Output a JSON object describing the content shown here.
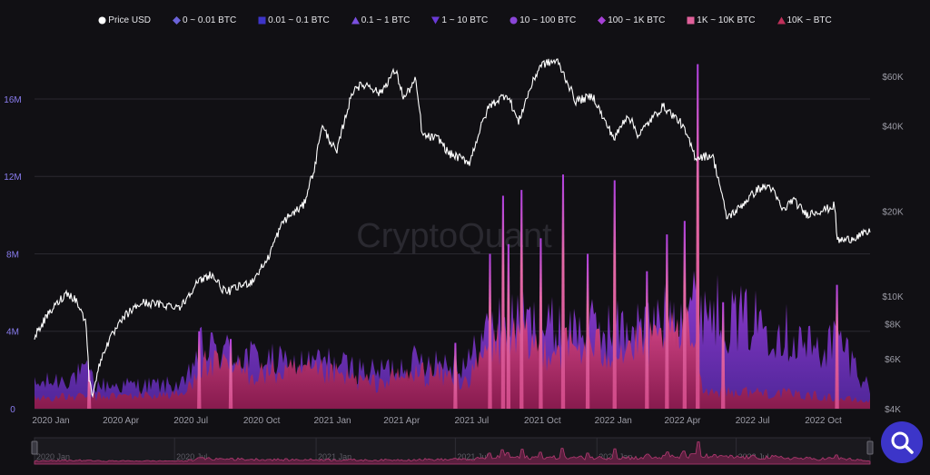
{
  "legend": [
    {
      "label": "Price USD",
      "shape": "circle",
      "color": "#ffffff"
    },
    {
      "label": "0 ~ 0.01 BTC",
      "shape": "diamond",
      "color": "#6b63d9"
    },
    {
      "label": "0.01 ~ 0.1 BTC",
      "shape": "square",
      "color": "#3d34c8"
    },
    {
      "label": "0.1 ~ 1 BTC",
      "shape": "triangle",
      "color": "#7a4fe0"
    },
    {
      "label": "1 ~ 10 BTC",
      "shape": "triangle-down",
      "color": "#6a3ad6"
    },
    {
      "label": "10 ~ 100 BTC",
      "shape": "circle",
      "color": "#8a45d8"
    },
    {
      "label": "100 ~ 1K BTC",
      "shape": "diamond",
      "color": "#a640d6"
    },
    {
      "label": "1K ~ 10K BTC",
      "shape": "square",
      "color": "#e0609a"
    },
    {
      "label": "10K ~ BTC",
      "shape": "triangle",
      "color": "#c0305a"
    }
  ],
  "watermark": "CryptoQuant",
  "chart_data": {
    "type": "area",
    "x_ticks": [
      "2020 Jan",
      "2020 Apr",
      "2020 Jul",
      "2020 Oct",
      "2021 Jan",
      "2021 Apr",
      "2021 Jul",
      "2021 Oct",
      "2022 Jan",
      "2022 Apr",
      "2022 Jul",
      "2022 Oct"
    ],
    "x_range": [
      "2020 Jan",
      "2022 Dec"
    ],
    "left_axis": {
      "ticks": [
        "0",
        "4M",
        "8M",
        "12M",
        "16M"
      ],
      "range": [
        0,
        19000000
      ]
    },
    "right_axis": {
      "scale": "log",
      "ticks": [
        "$4K",
        "$6K",
        "$8K",
        "$10K",
        "$20K",
        "$40K",
        "$60K"
      ],
      "range": [
        4000,
        80000
      ]
    },
    "grid": true,
    "legend_position": "top-center",
    "price_series": {
      "name": "Price USD",
      "points": [
        [
          "2020-01-01",
          7200
        ],
        [
          "2020-01-20",
          8700
        ],
        [
          "2020-02-12",
          10300
        ],
        [
          "2020-02-24",
          9700
        ],
        [
          "2020-03-08",
          8000
        ],
        [
          "2020-03-12",
          5000
        ],
        [
          "2020-03-16",
          4500
        ],
        [
          "2020-04-01",
          6500
        ],
        [
          "2020-04-29",
          8600
        ],
        [
          "2020-05-20",
          9500
        ],
        [
          "2020-06-20",
          9300
        ],
        [
          "2020-07-10",
          9200
        ],
        [
          "2020-07-28",
          11000
        ],
        [
          "2020-08-17",
          12000
        ],
        [
          "2020-09-05",
          10300
        ],
        [
          "2020-10-10",
          11300
        ],
        [
          "2020-10-30",
          13500
        ],
        [
          "2020-11-20",
          18500
        ],
        [
          "2020-12-16",
          21000
        ],
        [
          "2020-12-31",
          29000
        ],
        [
          "2021-01-08",
          40000
        ],
        [
          "2021-01-28",
          32000
        ],
        [
          "2021-02-20",
          55000
        ],
        [
          "2021-03-10",
          56000
        ],
        [
          "2021-03-25",
          52000
        ],
        [
          "2021-04-14",
          63000
        ],
        [
          "2021-04-25",
          50000
        ],
        [
          "2021-05-10",
          58000
        ],
        [
          "2021-05-19",
          37000
        ],
        [
          "2021-06-10",
          36000
        ],
        [
          "2021-06-22",
          32000
        ],
        [
          "2021-07-20",
          29800
        ],
        [
          "2021-08-14",
          47000
        ],
        [
          "2021-09-06",
          52000
        ],
        [
          "2021-09-21",
          41000
        ],
        [
          "2021-10-20",
          66000
        ],
        [
          "2021-11-10",
          68000
        ],
        [
          "2021-12-04",
          49000
        ],
        [
          "2021-12-27",
          51000
        ],
        [
          "2022-01-10",
          42000
        ],
        [
          "2022-01-24",
          36000
        ],
        [
          "2022-02-10",
          44000
        ],
        [
          "2022-02-24",
          37000
        ],
        [
          "2022-03-28",
          47000
        ],
        [
          "2022-04-20",
          41000
        ],
        [
          "2022-05-09",
          31000
        ],
        [
          "2022-05-31",
          31500
        ],
        [
          "2022-06-18",
          19000
        ],
        [
          "2022-07-01",
          20000
        ],
        [
          "2022-07-30",
          24000
        ],
        [
          "2022-08-14",
          24500
        ],
        [
          "2022-08-31",
          20000
        ],
        [
          "2022-09-12",
          22000
        ],
        [
          "2022-09-30",
          19500
        ],
        [
          "2022-10-31",
          20500
        ],
        [
          "2022-11-06",
          21000
        ],
        [
          "2022-11-09",
          15800
        ],
        [
          "2022-11-21",
          15800
        ],
        [
          "2022-12-20",
          16800
        ]
      ]
    },
    "volume_envelopes": [
      {
        "name": "10 ~ 100 BTC",
        "color": "#9333d6",
        "points": [
          [
            "2020-01-01",
            1300000
          ],
          [
            "2020-03-12",
            2000000
          ],
          [
            "2020-03-20",
            1300000
          ],
          [
            "2020-07-15",
            1300000
          ],
          [
            "2020-08-01",
            3300000
          ],
          [
            "2020-09-01",
            3200000
          ],
          [
            "2020-10-15",
            2800000
          ],
          [
            "2020-12-01",
            2400000
          ],
          [
            "2021-01-10",
            2600000
          ],
          [
            "2021-03-15",
            2000000
          ],
          [
            "2021-05-20",
            2700000
          ],
          [
            "2021-07-20",
            2600000
          ],
          [
            "2021-08-15",
            4600000
          ],
          [
            "2021-09-15",
            4800000
          ],
          [
            "2021-11-15",
            4400000
          ],
          [
            "2022-01-15",
            4400000
          ],
          [
            "2022-03-15",
            4600000
          ],
          [
            "2022-05-10",
            6200000
          ],
          [
            "2022-06-20",
            5000000
          ],
          [
            "2022-08-15",
            4800000
          ],
          [
            "2022-10-15",
            3200000
          ],
          [
            "2022-11-10",
            4000000
          ],
          [
            "2022-12-20",
            1200000
          ]
        ]
      },
      {
        "name": "1K ~ 10K BTC",
        "color": "#d83a7c",
        "points": [
          [
            "2020-01-01",
            600000
          ],
          [
            "2020-07-15",
            800000
          ],
          [
            "2020-08-01",
            2500000
          ],
          [
            "2020-10-15",
            2000000
          ],
          [
            "2021-01-10",
            2000000
          ],
          [
            "2021-03-15",
            1400000
          ],
          [
            "2021-05-20",
            2000000
          ],
          [
            "2021-07-20",
            1600000
          ],
          [
            "2021-08-15",
            3600000
          ],
          [
            "2021-09-15",
            3700000
          ],
          [
            "2021-11-15",
            3400000
          ],
          [
            "2022-01-15",
            3300000
          ],
          [
            "2022-03-15",
            3500000
          ],
          [
            "2022-05-10",
            4300000
          ],
          [
            "2022-05-20",
            1000000
          ],
          [
            "2022-08-15",
            900000
          ],
          [
            "2022-10-15",
            700000
          ],
          [
            "2022-12-20",
            400000
          ]
        ]
      }
    ],
    "spikes": [
      {
        "date": "2020-03-12",
        "value": 2000000
      },
      {
        "date": "2020-08-02",
        "value": 4000000
      },
      {
        "date": "2020-09-12",
        "value": 3600000
      },
      {
        "date": "2021-07-01",
        "value": 3400000
      },
      {
        "date": "2021-08-15",
        "value": 8000000
      },
      {
        "date": "2021-09-01",
        "value": 11000000
      },
      {
        "date": "2021-09-08",
        "value": 8500000
      },
      {
        "date": "2021-09-25",
        "value": 11300000
      },
      {
        "date": "2021-10-20",
        "value": 8800000
      },
      {
        "date": "2021-11-18",
        "value": 12100000
      },
      {
        "date": "2021-12-20",
        "value": 8000000
      },
      {
        "date": "2022-01-24",
        "value": 11800000
      },
      {
        "date": "2022-03-07",
        "value": 7100000
      },
      {
        "date": "2022-04-02",
        "value": 9000000
      },
      {
        "date": "2022-04-25",
        "value": 9700000
      },
      {
        "date": "2022-05-12",
        "value": 17800000
      },
      {
        "date": "2022-06-14",
        "value": 5500000
      },
      {
        "date": "2022-11-09",
        "value": 6400000
      }
    ],
    "navigator": {
      "x_ticks": [
        "2020 Jan",
        "2020 Jul",
        "2021 Jan",
        "2021 Jul",
        "2022 Jan",
        "2022 Jul"
      ]
    }
  }
}
